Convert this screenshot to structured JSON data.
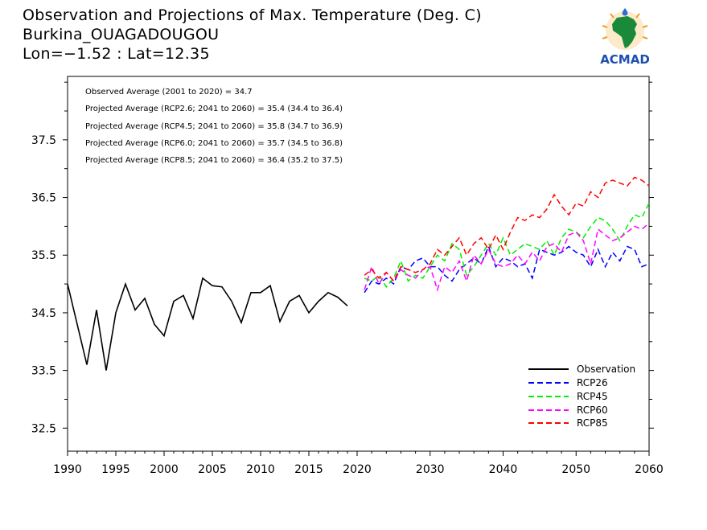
{
  "title": {
    "line1": "Observation and Projections of Max. Temperature (Deg. C)",
    "line2": "Burkina_OUAGADOUGOU",
    "line3": "Lon=−1.52 : Lat=12.35"
  },
  "logo": {
    "text": "ACMAD"
  },
  "annotations": [
    "Observed Average (2001 to 2020) = 34.7",
    "Projected Average (RCP2.6; 2041 to 2060) = 35.4 (34.4 to 36.4)",
    "Projected Average (RCP4.5; 2041 to 2060) = 35.8 (34.7 to 36.9)",
    "Projected Average (RCP6.0; 2041 to 2060) = 35.7 (34.5 to 36.8)",
    "Projected Average (RCP8.5; 2041 to 2060) = 36.4 (35.2 to 37.5)"
  ],
  "chart_data": {
    "type": "line",
    "xlim": [
      1990,
      2060
    ],
    "ylim": [
      32.1,
      38.6
    ],
    "yticks": [
      32.5,
      33.5,
      34.5,
      35.5,
      36.5,
      37.5
    ],
    "ytick_labels": [
      "32.5",
      "33.5",
      "34.5",
      "35.5",
      "36.5",
      "37.5"
    ],
    "xticks_hist": [
      1990,
      1995,
      2000,
      2005,
      2010,
      2015,
      2020
    ],
    "xticks_proj": [
      2030,
      2040,
      2050,
      2060
    ],
    "xtick_labels_hist": [
      "1990",
      "1995",
      "2000",
      "2005",
      "2010",
      "2015",
      "2020"
    ],
    "xtick_labels_proj": [
      "2030",
      "2040",
      "2050",
      "2060"
    ],
    "grid": false,
    "legend_position": "bottom-right",
    "series": [
      {
        "name": "Observation",
        "color": "#000000",
        "style": "solid",
        "x": [
          1990,
          1991,
          1992,
          1993,
          1994,
          1995,
          1996,
          1997,
          1998,
          1999,
          2000,
          2001,
          2002,
          2003,
          2004,
          2005,
          2006,
          2007,
          2008,
          2009,
          2010,
          2011,
          2012,
          2013,
          2014,
          2015,
          2016,
          2017,
          2018,
          2019
        ],
        "values": [
          35.0,
          34.3,
          33.6,
          34.55,
          33.5,
          34.5,
          35.0,
          34.55,
          34.75,
          34.3,
          34.1,
          34.7,
          34.8,
          34.4,
          35.1,
          34.97,
          34.95,
          34.7,
          34.33,
          34.85,
          34.85,
          34.97,
          34.35,
          34.7,
          34.8,
          34.5,
          34.7,
          34.85,
          34.77,
          34.62
        ]
      },
      {
        "name": "RCP26",
        "color": "#0000ff",
        "style": "dashed",
        "x": [
          2021,
          2022,
          2023,
          2024,
          2025,
          2026,
          2027,
          2028,
          2029,
          2030,
          2031,
          2032,
          2033,
          2034,
          2035,
          2036,
          2037,
          2038,
          2039,
          2040,
          2041,
          2042,
          2043,
          2044,
          2045,
          2046,
          2047,
          2048,
          2049,
          2050,
          2051,
          2052,
          2053,
          2054,
          2055,
          2056,
          2057,
          2058,
          2059,
          2060
        ],
        "values": [
          34.85,
          35.05,
          35.0,
          35.1,
          35.0,
          35.3,
          35.25,
          35.4,
          35.45,
          35.3,
          35.3,
          35.15,
          35.05,
          35.25,
          35.35,
          35.45,
          35.35,
          35.65,
          35.3,
          35.45,
          35.4,
          35.3,
          35.35,
          35.1,
          35.6,
          35.55,
          35.5,
          35.55,
          35.65,
          35.55,
          35.5,
          35.3,
          35.6,
          35.3,
          35.55,
          35.4,
          35.65,
          35.6,
          35.3,
          35.35
        ]
      },
      {
        "name": "RCP45",
        "color": "#00ee00",
        "style": "dashed",
        "x": [
          2021,
          2022,
          2023,
          2024,
          2025,
          2026,
          2027,
          2028,
          2029,
          2030,
          2031,
          2032,
          2033,
          2034,
          2035,
          2036,
          2037,
          2038,
          2039,
          2040,
          2041,
          2042,
          2043,
          2044,
          2045,
          2046,
          2047,
          2048,
          2049,
          2050,
          2051,
          2052,
          2053,
          2054,
          2055,
          2056,
          2057,
          2058,
          2059,
          2060
        ],
        "values": [
          35.1,
          35.05,
          35.15,
          34.95,
          35.1,
          35.4,
          35.05,
          35.15,
          35.1,
          35.3,
          35.5,
          35.4,
          35.7,
          35.6,
          35.15,
          35.3,
          35.5,
          35.7,
          35.5,
          35.8,
          35.5,
          35.6,
          35.7,
          35.65,
          35.6,
          35.75,
          35.5,
          35.8,
          35.95,
          35.9,
          35.8,
          36.0,
          36.15,
          36.1,
          35.95,
          35.75,
          36.0,
          36.2,
          36.15,
          36.4
        ]
      },
      {
        "name": "RCP60",
        "color": "#ff00ff",
        "style": "dashed",
        "x": [
          2021,
          2022,
          2023,
          2024,
          2025,
          2026,
          2027,
          2028,
          2029,
          2030,
          2031,
          2032,
          2033,
          2034,
          2035,
          2036,
          2037,
          2038,
          2039,
          2040,
          2041,
          2042,
          2043,
          2044,
          2045,
          2046,
          2047,
          2048,
          2049,
          2050,
          2051,
          2052,
          2053,
          2054,
          2055,
          2056,
          2057,
          2058,
          2059,
          2060
        ],
        "values": [
          34.9,
          35.3,
          35.0,
          35.2,
          35.05,
          35.25,
          35.15,
          35.1,
          35.25,
          35.3,
          34.9,
          35.3,
          35.2,
          35.4,
          35.05,
          35.5,
          35.35,
          35.6,
          35.35,
          35.3,
          35.35,
          35.5,
          35.35,
          35.55,
          35.4,
          35.65,
          35.7,
          35.55,
          35.85,
          35.9,
          35.75,
          35.35,
          35.95,
          35.85,
          35.75,
          35.8,
          35.9,
          36.0,
          35.95,
          36.05
        ]
      },
      {
        "name": "RCP85",
        "color": "#ff0000",
        "style": "dashed",
        "x": [
          2021,
          2022,
          2023,
          2024,
          2025,
          2026,
          2027,
          2028,
          2029,
          2030,
          2031,
          2032,
          2033,
          2034,
          2035,
          2036,
          2037,
          2038,
          2039,
          2040,
          2041,
          2042,
          2043,
          2044,
          2045,
          2046,
          2047,
          2048,
          2049,
          2050,
          2051,
          2052,
          2053,
          2054,
          2055,
          2056,
          2057,
          2058,
          2059,
          2060
        ],
        "values": [
          35.15,
          35.25,
          35.1,
          35.2,
          35.05,
          35.3,
          35.25,
          35.2,
          35.25,
          35.35,
          35.6,
          35.5,
          35.65,
          35.8,
          35.5,
          35.7,
          35.8,
          35.6,
          35.85,
          35.6,
          35.9,
          36.15,
          36.1,
          36.2,
          36.15,
          36.3,
          36.55,
          36.35,
          36.2,
          36.4,
          36.35,
          36.6,
          36.5,
          36.75,
          36.8,
          36.75,
          36.7,
          36.85,
          36.8,
          36.7
        ]
      }
    ]
  }
}
